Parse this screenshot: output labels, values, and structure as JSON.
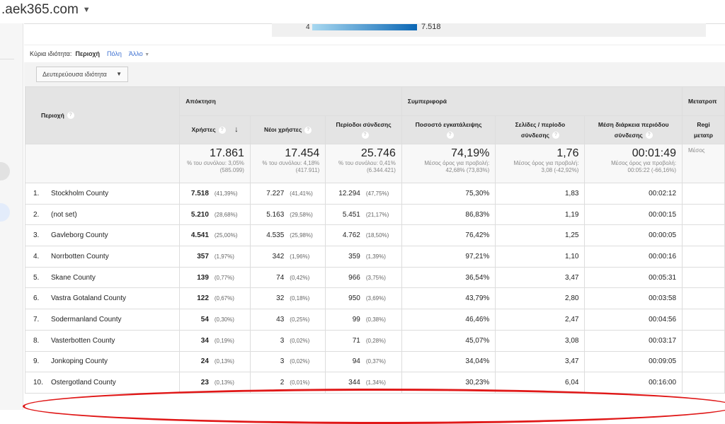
{
  "site": {
    "title": ".aek365.com"
  },
  "map": {
    "legend_min": "4",
    "legend_max": "7.518",
    "accent": "#0b67b5"
  },
  "dimension": {
    "label": "Κύρια ιδιότητα:",
    "active": "Περιοχή",
    "city": "Πόλη",
    "other": "Άλλο"
  },
  "secondary": {
    "label": "Δευτερεύουσα ιδιότητα"
  },
  "table": {
    "region_header": "Περιοχή",
    "groups": [
      "Απόκτηση",
      "Συμπεριφορά",
      "Μετατροπ"
    ],
    "columns": [
      "Χρήστες",
      "Νέοι χρήστες",
      "Περίοδοι σύνδεσης",
      "Ποσοστό εγκατάλειψης",
      "Σελίδες / περίοδο σύνδεσης",
      "Μέση διάρκεια περιόδου σύνδεσης",
      "Regi μετατρ"
    ],
    "totals": [
      {
        "value": "17.861",
        "sub": "% του συνόλου: 3,05% (585.099)"
      },
      {
        "value": "17.454",
        "sub": "% του συνόλου: 4,18% (417.911)"
      },
      {
        "value": "25.746",
        "sub": "% του συνόλου: 0,41% (6.344.421)"
      },
      {
        "value": "74,19%",
        "sub": "Μέσος όρος για προβολή: 42,68% (73,83%)"
      },
      {
        "value": "1,76",
        "sub": "Μέσος όρος για προβολή: 3,08 (-42,92%)"
      },
      {
        "value": "00:01:49",
        "sub": "Μέσος όρος για προβολή: 00:05:22 (-66,16%)"
      },
      {
        "value": "",
        "sub": "Μέσος"
      }
    ],
    "rows": [
      {
        "idx": "1.",
        "name": "Stockholm County",
        "users": "7.518",
        "users_pct": "(41,39%)",
        "new": "7.227",
        "new_pct": "(41,41%)",
        "sessions": "12.294",
        "sessions_pct": "(47,75%)",
        "bounce": "75,30%",
        "pages": "1,83",
        "duration": "00:02:12"
      },
      {
        "idx": "2.",
        "name": "(not set)",
        "users": "5.210",
        "users_pct": "(28,68%)",
        "new": "5.163",
        "new_pct": "(29,58%)",
        "sessions": "5.451",
        "sessions_pct": "(21,17%)",
        "bounce": "86,83%",
        "pages": "1,19",
        "duration": "00:00:15"
      },
      {
        "idx": "3.",
        "name": "Gavleborg County",
        "users": "4.541",
        "users_pct": "(25,00%)",
        "new": "4.535",
        "new_pct": "(25,98%)",
        "sessions": "4.762",
        "sessions_pct": "(18,50%)",
        "bounce": "76,42%",
        "pages": "1,25",
        "duration": "00:00:05"
      },
      {
        "idx": "4.",
        "name": "Norrbotten County",
        "users": "357",
        "users_pct": "(1,97%)",
        "new": "342",
        "new_pct": "(1,96%)",
        "sessions": "359",
        "sessions_pct": "(1,39%)",
        "bounce": "97,21%",
        "pages": "1,10",
        "duration": "00:00:16"
      },
      {
        "idx": "5.",
        "name": "Skane County",
        "users": "139",
        "users_pct": "(0,77%)",
        "new": "74",
        "new_pct": "(0,42%)",
        "sessions": "966",
        "sessions_pct": "(3,75%)",
        "bounce": "36,54%",
        "pages": "3,47",
        "duration": "00:05:31"
      },
      {
        "idx": "6.",
        "name": "Vastra Gotaland County",
        "users": "122",
        "users_pct": "(0,67%)",
        "new": "32",
        "new_pct": "(0,18%)",
        "sessions": "950",
        "sessions_pct": "(3,69%)",
        "bounce": "43,79%",
        "pages": "2,80",
        "duration": "00:03:58"
      },
      {
        "idx": "7.",
        "name": "Sodermanland County",
        "users": "54",
        "users_pct": "(0,30%)",
        "new": "43",
        "new_pct": "(0,25%)",
        "sessions": "99",
        "sessions_pct": "(0,38%)",
        "bounce": "46,46%",
        "pages": "2,47",
        "duration": "00:04:56"
      },
      {
        "idx": "8.",
        "name": "Vasterbotten County",
        "users": "34",
        "users_pct": "(0,19%)",
        "new": "3",
        "new_pct": "(0,02%)",
        "sessions": "71",
        "sessions_pct": "(0,28%)",
        "bounce": "45,07%",
        "pages": "3,08",
        "duration": "00:03:17"
      },
      {
        "idx": "9.",
        "name": "Jonkoping County",
        "users": "24",
        "users_pct": "(0,13%)",
        "new": "3",
        "new_pct": "(0,02%)",
        "sessions": "94",
        "sessions_pct": "(0,37%)",
        "bounce": "34,04%",
        "pages": "3,47",
        "duration": "00:09:05"
      },
      {
        "idx": "10.",
        "name": "Ostergotland County",
        "users": "23",
        "users_pct": "(0,13%)",
        "new": "2",
        "new_pct": "(0,01%)",
        "sessions": "344",
        "sessions_pct": "(1,34%)",
        "bounce": "30,23%",
        "pages": "6,04",
        "duration": "00:16:00"
      }
    ]
  },
  "highlight_color": "#e01818"
}
